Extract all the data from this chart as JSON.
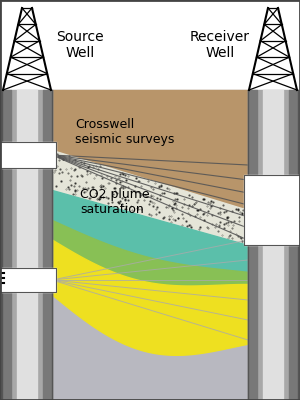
{
  "fig_width": 3.0,
  "fig_height": 4.0,
  "dpi": 100,
  "bg_color": "#ffffff",
  "border_color": "#555555",
  "layer_brown_color": "#b8956a",
  "layer_dotted_color": "#e5e5d8",
  "layer_teal_color": "#5bbfaa",
  "layer_green_color": "#88c055",
  "layer_yellow_color": "#eee020",
  "layer_gray_color": "#b8b8c0",
  "seismic_ray_color_dark": "#555555",
  "seismic_ray_color_light": "#aaaaaa",
  "label_crosswell": "Crosswell\nseismic surveys",
  "label_co2": "CO2 plume\nsaturation",
  "font_size_labels": 9
}
